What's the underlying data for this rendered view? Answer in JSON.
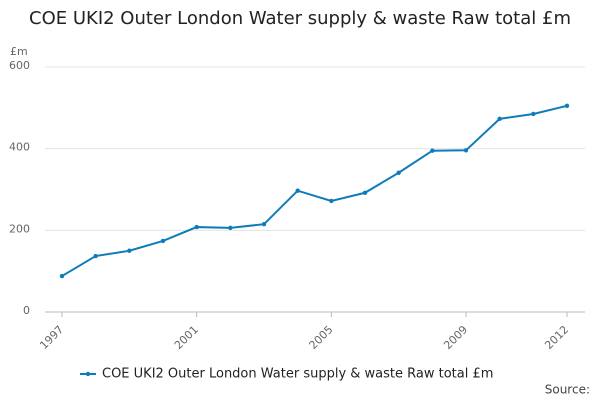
{
  "chart_data": {
    "type": "line",
    "title": "COE UKI2 Outer London Water supply & waste Raw total £m",
    "y_label": "£m",
    "source": "Source:",
    "x": [
      1997,
      1998,
      1999,
      2000,
      2001,
      2002,
      2003,
      2004,
      2005,
      2006,
      2007,
      2008,
      2009,
      2010,
      2011,
      2012
    ],
    "series": [
      {
        "name": "COE UKI2 Outer London Water supply & waste Raw total £m",
        "color": "#0f7cba",
        "values": [
          88,
          137,
          150,
          174,
          208,
          206,
          215,
          297,
          272,
          292,
          341,
          395,
          396,
          473,
          485,
          505
        ]
      }
    ],
    "xlim": [
      1997,
      2012
    ],
    "xticks": [
      1997,
      2001,
      2005,
      2009,
      2012
    ],
    "ylim": [
      0,
      600
    ],
    "yticks": [
      0,
      200,
      400,
      600
    ],
    "grid": true
  }
}
